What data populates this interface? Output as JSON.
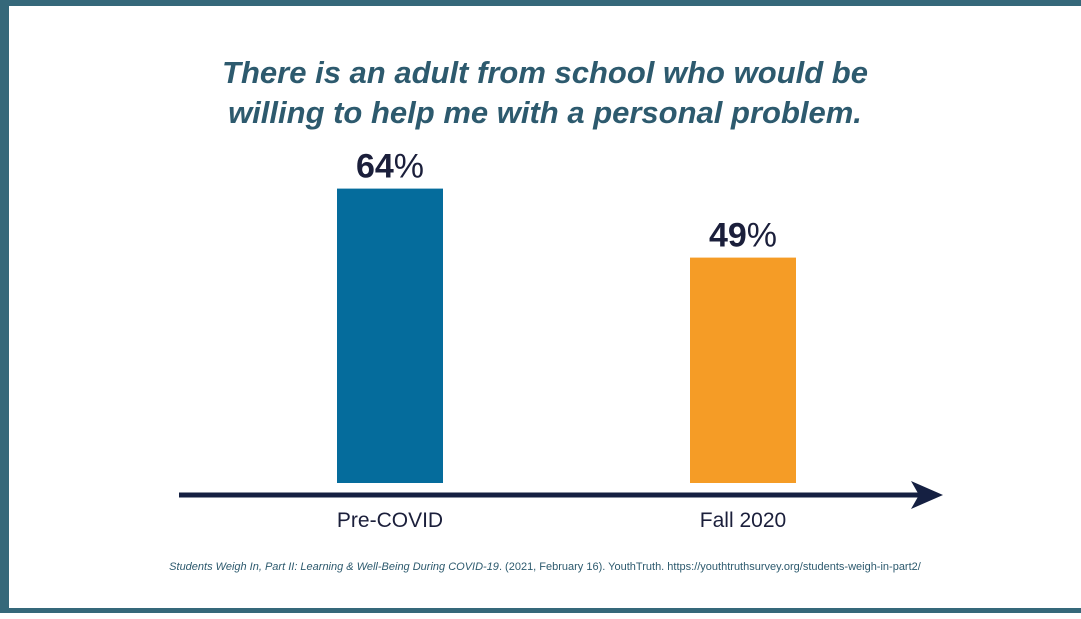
{
  "chart_data": {
    "type": "bar",
    "title": "There is an adult from school who would be willing to help me with a personal problem.",
    "title_lines": [
      "There is an adult from school who would be",
      "willing to help me with a personal problem."
    ],
    "categories": [
      "Pre-COVID",
      "Fall 2020"
    ],
    "values": [
      64,
      49
    ],
    "unit": "%",
    "data_labels": [
      "64",
      "49"
    ],
    "colors": [
      "#056c9c",
      "#f59c26"
    ],
    "xlabel": "",
    "ylabel": "",
    "ylim": [
      0,
      70
    ],
    "grid": false,
    "legend": "none"
  },
  "citation": {
    "title": "Students Weigh In, Part II: Learning & Well-Being During COVID-19",
    "rest": ". (2021, February 16). YouthTruth. https://youthtruthsurvey.org/students-weigh-in-part2/"
  },
  "colors": {
    "frame": "#35687a",
    "title": "#2d5a6e",
    "axis": "#152042",
    "label": "#1b1f3b"
  }
}
